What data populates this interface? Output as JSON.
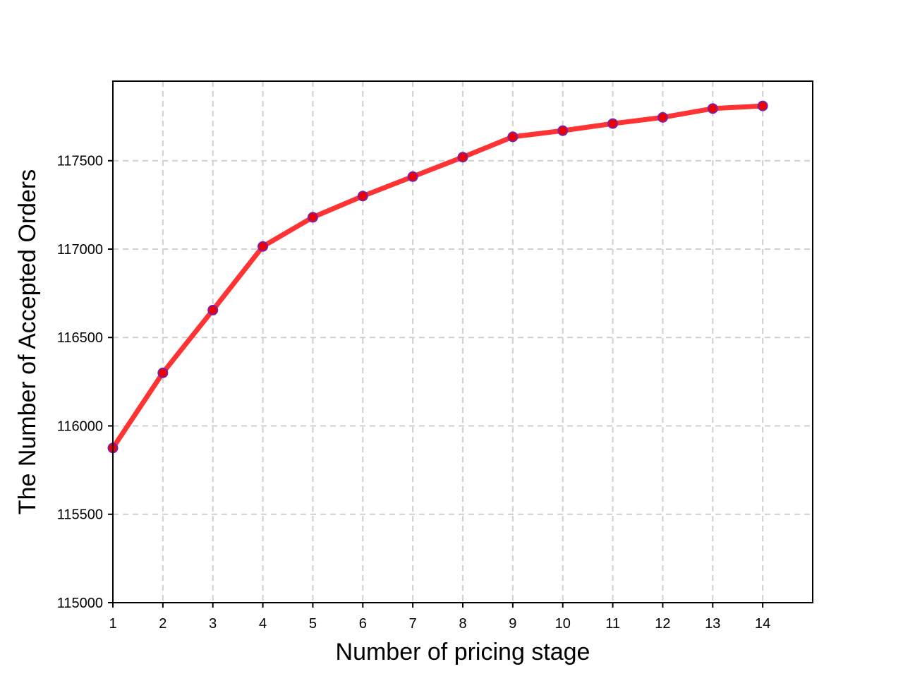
{
  "chart_data": {
    "type": "line",
    "title": "",
    "xlabel": "Number of pricing stage",
    "ylabel": "The Number of Accepted Orders",
    "x": [
      1,
      2,
      3,
      4,
      5,
      6,
      7,
      8,
      9,
      10,
      11,
      12,
      13,
      14
    ],
    "x_ticks": [
      "1",
      "2",
      "3",
      "4",
      "5",
      "6",
      "7",
      "8",
      "9",
      "10",
      "11",
      "12",
      "13",
      "14"
    ],
    "y_ticks": [
      "115000",
      "115500",
      "116000",
      "116500",
      "117000",
      "117500"
    ],
    "xlim": [
      1,
      15
    ],
    "ylim": [
      115000,
      117950
    ],
    "grid": true,
    "series": [
      {
        "values": [
          115875,
          116300,
          116655,
          117015,
          117180,
          117300,
          117410,
          117520,
          117635,
          117670,
          117710,
          117745,
          117795,
          117810
        ],
        "color": "#ff3333",
        "marker_face": "#ee0000",
        "marker_edge": "#7a22aa"
      }
    ]
  }
}
